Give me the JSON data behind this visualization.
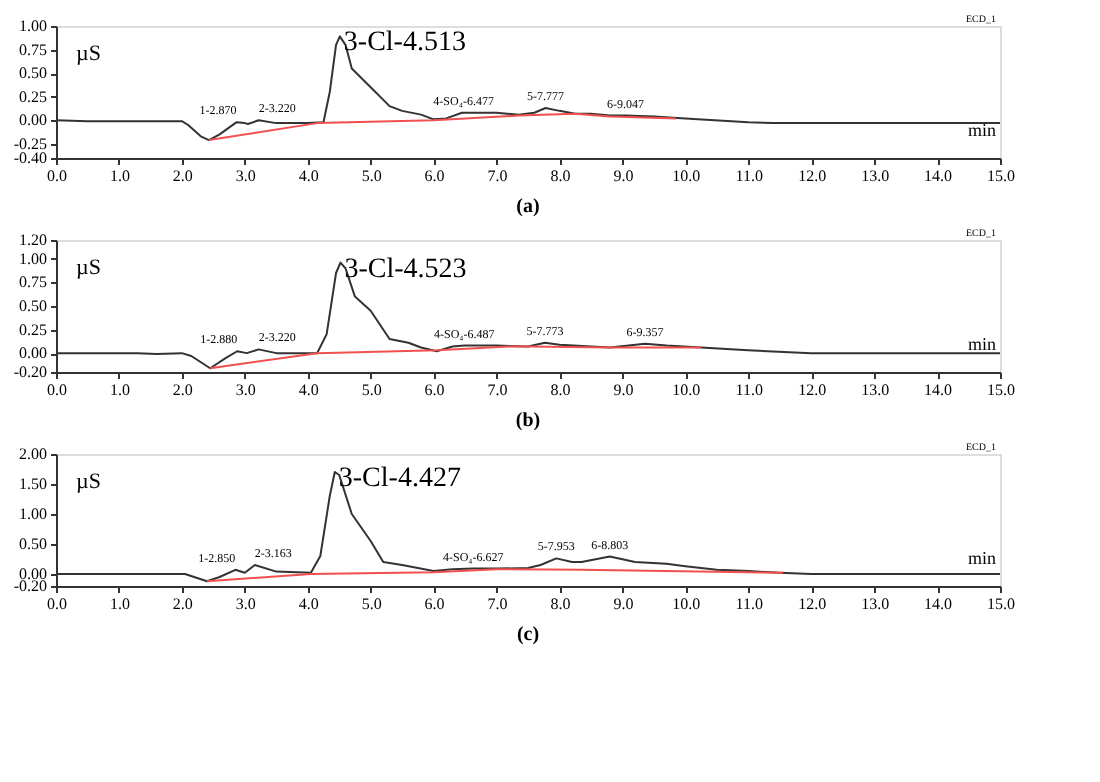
{
  "chart_data": [
    {
      "type": "line",
      "title": "(a)",
      "xlabel": "min",
      "ylabel": "µS",
      "xlim": [
        0,
        15
      ],
      "xticks": [
        {
          "value": 0,
          "label": "0.0"
        },
        {
          "value": 1,
          "label": "1.0"
        },
        {
          "value": 2,
          "label": "2.0"
        },
        {
          "value": 3,
          "label": "3.0"
        },
        {
          "value": 4,
          "label": "4.0"
        },
        {
          "value": 5,
          "label": "5.0"
        },
        {
          "value": 6,
          "label": "6.0"
        },
        {
          "value": 7,
          "label": "7.0"
        },
        {
          "value": 8,
          "label": "8.0"
        },
        {
          "value": 9,
          "label": "9.0"
        },
        {
          "value": 10,
          "label": "10.0"
        },
        {
          "value": 11,
          "label": "11.0"
        },
        {
          "value": 12,
          "label": "12.0"
        },
        {
          "value": 13,
          "label": "13.0"
        },
        {
          "value": 14,
          "label": "14.0"
        },
        {
          "value": 15,
          "label": "15.0"
        }
      ],
      "ylim": [
        -0.4,
        1.0
      ],
      "yticks": [
        {
          "value": -0.4,
          "label": "-0.40"
        },
        {
          "value": -0.25,
          "label": "-0.25"
        },
        {
          "value": 0,
          "label": "0.00"
        },
        {
          "value": 0.25,
          "label": "0.25"
        },
        {
          "value": 0.5,
          "label": "0.50"
        },
        {
          "value": 0.75,
          "label": "0.75"
        },
        {
          "value": 1.0,
          "label": "1.00"
        }
      ],
      "series": [
        {
          "color": "#333333",
          "x": [
            0,
            0.5,
            1,
            2.0,
            2.1,
            2.3,
            2.43,
            2.6,
            2.87,
            3.0,
            3.05,
            3.22,
            3.5,
            4.0,
            4.25,
            4.35,
            4.45,
            4.51,
            4.6,
            4.7,
            5.0,
            5.3,
            5.5,
            5.8,
            6.0,
            6.2,
            6.45,
            7.0,
            7.35,
            7.6,
            7.78,
            8.0,
            8.25,
            8.5,
            8.8,
            9.05,
            9.5,
            10,
            11,
            11.4,
            15
          ],
          "values": [
            0,
            -0.01,
            -0.01,
            -0.01,
            -0.05,
            -0.17,
            -0.21,
            -0.15,
            -0.02,
            -0.03,
            -0.04,
            0.0,
            -0.03,
            -0.03,
            -0.02,
            0.3,
            0.8,
            0.89,
            0.8,
            0.55,
            0.35,
            0.15,
            0.1,
            0.06,
            0.01,
            0.02,
            0.08,
            0.08,
            0.06,
            0.08,
            0.13,
            0.1,
            0.07,
            0.07,
            0.05,
            0.05,
            0.04,
            0.02,
            -0.02,
            -0.03,
            -0.03
          ]
        },
        {
          "color": "#f05050",
          "x": [
            2.43,
            4.15,
            6.0,
            7.35,
            8.25,
            8.8,
            9.85
          ],
          "values": [
            -0.21,
            -0.03,
            0.0,
            0.05,
            0.07,
            0.04,
            0.02
          ]
        }
      ],
      "annotations": [
        {
          "text": "1-2.870",
          "x": 2.87,
          "y": -0.02
        },
        {
          "text": "2-3.220",
          "x": 3.22,
          "y": 0.0
        },
        {
          "text": "3-Cl-4.513",
          "x": 4.51,
          "y": 0.89
        },
        {
          "text": "4-SO₄-6.477",
          "x": 6.477,
          "y": 0.08
        },
        {
          "text": "5-7.777",
          "x": 7.78,
          "y": 0.13
        },
        {
          "text": "6-9.047",
          "x": 9.05,
          "y": 0.05
        },
        "ECD_1"
      ]
    },
    {
      "type": "line",
      "title": "(b)",
      "xlabel": "min",
      "ylabel": "µS",
      "xlim": [
        0,
        15
      ],
      "xticks": [
        {
          "value": 0,
          "label": "0.0"
        },
        {
          "value": 1,
          "label": "1.0"
        },
        {
          "value": 2,
          "label": "2.0"
        },
        {
          "value": 3,
          "label": "3.0"
        },
        {
          "value": 4,
          "label": "4.0"
        },
        {
          "value": 5,
          "label": "5.0"
        },
        {
          "value": 6,
          "label": "6.0"
        },
        {
          "value": 7,
          "label": "7.0"
        },
        {
          "value": 8,
          "label": "8.0"
        },
        {
          "value": 9,
          "label": "9.0"
        },
        {
          "value": 10,
          "label": "10.0"
        },
        {
          "value": 11,
          "label": "11.0"
        },
        {
          "value": 12,
          "label": "12.0"
        },
        {
          "value": 13,
          "label": "13.0"
        },
        {
          "value": 14,
          "label": "14.0"
        },
        {
          "value": 15,
          "label": "15.0"
        }
      ],
      "ylim": [
        -0.2,
        1.2
      ],
      "yticks": [
        {
          "value": -0.2,
          "label": "-0.20"
        },
        {
          "value": 0,
          "label": "0.00"
        },
        {
          "value": 0.25,
          "label": "0.25"
        },
        {
          "value": 0.5,
          "label": "0.50"
        },
        {
          "value": 0.75,
          "label": "0.75"
        },
        {
          "value": 1.0,
          "label": "1.00"
        },
        {
          "value": 1.2,
          "label": "1.20"
        }
      ],
      "series": [
        {
          "color": "#333333",
          "x": [
            0,
            1.3,
            1.6,
            2.0,
            2.15,
            2.45,
            2.7,
            2.88,
            3.03,
            3.22,
            3.5,
            4.15,
            4.3,
            4.45,
            4.52,
            4.6,
            4.75,
            5.0,
            5.3,
            5.6,
            5.8,
            6.05,
            6.3,
            6.49,
            7.0,
            7.5,
            7.77,
            8.0,
            8.8,
            9.36,
            9.7,
            10.25,
            11.0,
            12,
            15
          ],
          "values": [
            0,
            0,
            -0.01,
            0,
            -0.03,
            -0.16,
            -0.05,
            0.02,
            0.0,
            0.04,
            0.0,
            0.0,
            0.2,
            0.85,
            0.96,
            0.9,
            0.6,
            0.45,
            0.15,
            0.11,
            0.06,
            0.02,
            0.07,
            0.08,
            0.08,
            0.07,
            0.11,
            0.09,
            0.06,
            0.1,
            0.08,
            0.06,
            0.03,
            0.0,
            0.0
          ]
        },
        {
          "color": "#f05050",
          "x": [
            2.45,
            4.15,
            6.05,
            7.2,
            7.5,
            8.8,
            10.25
          ],
          "values": [
            -0.16,
            0.0,
            0.03,
            0.07,
            0.07,
            0.06,
            0.06
          ]
        }
      ],
      "annotations": [
        {
          "text": "1-2.880",
          "x": 2.88,
          "y": 0.02
        },
        {
          "text": "2-3.220",
          "x": 3.22,
          "y": 0.04
        },
        {
          "text": "3-Cl-4.523",
          "x": 4.52,
          "y": 0.96
        },
        {
          "text": "4-SO₄-6.487",
          "x": 6.487,
          "y": 0.08
        },
        {
          "text": "5-7.773",
          "x": 7.77,
          "y": 0.11
        },
        {
          "text": "6-9.357",
          "x": 9.36,
          "y": 0.1
        },
        "ECD_1"
      ]
    },
    {
      "type": "line",
      "title": "(c)",
      "xlabel": "min",
      "ylabel": "µS",
      "xlim": [
        0,
        15
      ],
      "xticks": [
        {
          "value": 0,
          "label": "0.0"
        },
        {
          "value": 1,
          "label": "1.0"
        },
        {
          "value": 2,
          "label": "2.0"
        },
        {
          "value": 3,
          "label": "3.0"
        },
        {
          "value": 4,
          "label": "4.0"
        },
        {
          "value": 5,
          "label": "5.0"
        },
        {
          "value": 6,
          "label": "6.0"
        },
        {
          "value": 7,
          "label": "7.0"
        },
        {
          "value": 8,
          "label": "8.0"
        },
        {
          "value": 9,
          "label": "9.0"
        },
        {
          "value": 10,
          "label": "10.0"
        },
        {
          "value": 11,
          "label": "11.0"
        },
        {
          "value": 12,
          "label": "12.0"
        },
        {
          "value": 13,
          "label": "13.0"
        },
        {
          "value": 14,
          "label": "14.0"
        },
        {
          "value": 15,
          "label": "15.0"
        }
      ],
      "ylim": [
        -0.2,
        2.0
      ],
      "yticks": [
        {
          "value": -0.2,
          "label": "-0.20"
        },
        {
          "value": 0,
          "label": "0.00"
        },
        {
          "value": 0.5,
          "label": "0.50"
        },
        {
          "value": 1.0,
          "label": "1.00"
        },
        {
          "value": 1.5,
          "label": "1.50"
        },
        {
          "value": 2.0,
          "label": "2.00"
        }
      ],
      "series": [
        {
          "color": "#333333",
          "x": [
            0,
            2.05,
            2.4,
            2.6,
            2.85,
            3.0,
            3.16,
            3.5,
            4.05,
            4.2,
            4.35,
            4.43,
            4.5,
            4.7,
            5.0,
            5.2,
            5.5,
            6.0,
            6.3,
            6.63,
            7.0,
            7.5,
            7.7,
            7.95,
            8.2,
            8.35,
            8.8,
            9.2,
            9.7,
            10.0,
            10.5,
            11.0,
            11.5,
            12,
            15
          ],
          "values": [
            0,
            0,
            -0.12,
            -0.05,
            0.07,
            0.02,
            0.15,
            0.04,
            0.02,
            0.3,
            1.3,
            1.7,
            1.65,
            1.0,
            0.55,
            0.2,
            0.15,
            0.05,
            0.08,
            0.09,
            0.09,
            0.1,
            0.15,
            0.26,
            0.2,
            0.2,
            0.29,
            0.2,
            0.17,
            0.13,
            0.07,
            0.05,
            0.02,
            0.0,
            0.0
          ]
        },
        {
          "color": "#f05050",
          "x": [
            2.4,
            4.05,
            6.0,
            7.0,
            8.35,
            11.55
          ],
          "values": [
            -0.12,
            0.0,
            0.03,
            0.08,
            0.07,
            0.02
          ]
        }
      ],
      "annotations": [
        {
          "text": "1-2.850",
          "x": 2.85,
          "y": 0.07
        },
        {
          "text": "2-3.163",
          "x": 3.16,
          "y": 0.15
        },
        {
          "text": "3-Cl-4.427",
          "x": 4.43,
          "y": 1.7
        },
        {
          "text": "4-SO₄-6.627",
          "x": 6.63,
          "y": 0.09
        },
        {
          "text": "5-7.953",
          "x": 7.95,
          "y": 0.26
        },
        {
          "text": "6-8.803",
          "x": 8.8,
          "y": 0.29
        },
        "ECD_1"
      ]
    }
  ]
}
